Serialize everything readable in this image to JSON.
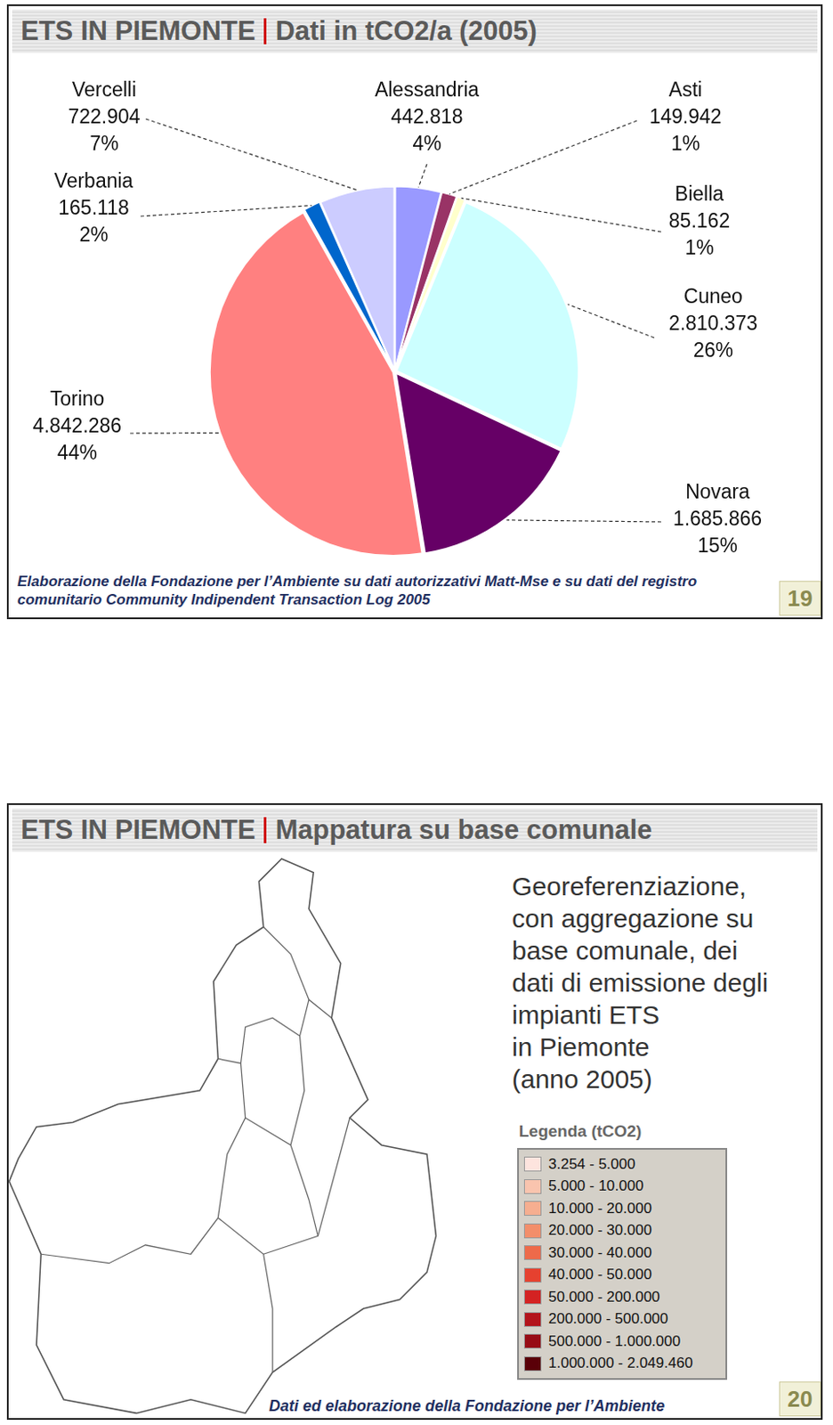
{
  "chart_data": {
    "type": "pie",
    "title": "ETS IN PIEMONTE",
    "subtitle": "Dati in tCO2/a (2005)",
    "categories": [
      "Alessandria",
      "Asti",
      "Biella",
      "Cuneo",
      "Novara",
      "Torino",
      "Verbania",
      "Vercelli"
    ],
    "values": [
      442818,
      149942,
      85162,
      2810373,
      1685866,
      4842286,
      165118,
      722904
    ],
    "value_labels": [
      "442.818",
      "149.942",
      "85.162",
      "2.810.373",
      "1.685.866",
      "4.842.286",
      "165.118",
      "722.904"
    ],
    "percentages": [
      {
        "value": 4,
        "label": "4%"
      },
      {
        "value": 1,
        "label": "1%"
      },
      {
        "value": 1,
        "label": "1%"
      },
      {
        "value": 26,
        "label": "26%"
      },
      {
        "value": 15,
        "label": "15%"
      },
      {
        "value": 44,
        "label": "44%"
      },
      {
        "value": 2,
        "label": "2%"
      },
      {
        "value": 7,
        "label": "7%"
      }
    ],
    "colors": [
      "#9999ff",
      "#993366",
      "#ffffcc",
      "#ccffff",
      "#660066",
      "#ff8080",
      "#0066cc",
      "#ccccff"
    ],
    "data_labels": true,
    "source": "Elaborazione della Fondazione per l’Ambiente su dati autorizzativi Matt-Mse e su dati del registro comunitario Community Indipendent Transaction Log 2005",
    "page": 19
  },
  "map_slide": {
    "title": "ETS IN PIEMONTE",
    "subtitle": "Mappatura su base comunale",
    "description": [
      "Georeferenziazione,",
      "con aggregazione su",
      "base comunale, dei",
      "dati di emissione degli",
      "impianti ETS",
      "in Piemonte",
      "(anno 2005)"
    ],
    "legend": {
      "title": "Legenda (tCO2)",
      "classes": [
        {
          "label": "3.254 - 5.000",
          "color": "#fde4de"
        },
        {
          "label": "5.000 - 10.000",
          "color": "#f9c4ae"
        },
        {
          "label": "10.000 - 20.000",
          "color": "#f6ae90"
        },
        {
          "label": "20.000 - 30.000",
          "color": "#f38e6a"
        },
        {
          "label": "30.000 - 40.000",
          "color": "#ee6a4a"
        },
        {
          "label": "40.000 - 50.000",
          "color": "#e6412f"
        },
        {
          "label": "50.000 - 200.000",
          "color": "#d42222"
        },
        {
          "label": "200.000 - 500.000",
          "color": "#b3131b"
        },
        {
          "label": "500.000 - 1.000.000",
          "color": "#970b15"
        },
        {
          "label": "1.000.000 - 2.049.460",
          "color": "#5a0008"
        }
      ]
    },
    "source": "Dati ed elaborazione della Fondazione per l’Ambiente",
    "page": 20
  }
}
